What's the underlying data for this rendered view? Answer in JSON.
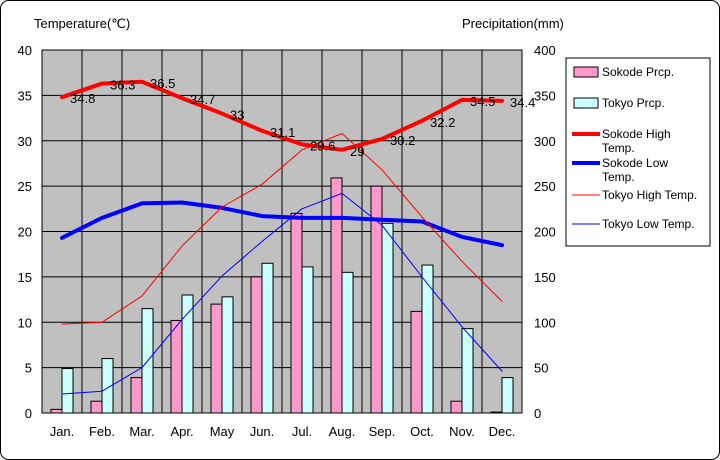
{
  "chart_data": {
    "type": "bar",
    "left_unit_label": "Temperature(℃)",
    "right_unit_label": "Precipitation(mm)",
    "categories": [
      "Jan.",
      "Feb.",
      "Mar.",
      "Apr.",
      "May",
      "Jun.",
      "Jul.",
      "Aug.",
      "Sep.",
      "Oct.",
      "Nov.",
      "Dec."
    ],
    "left_axis": {
      "min": 0,
      "max": 40,
      "ticks": [
        0,
        5,
        10,
        15,
        20,
        25,
        30,
        35,
        40
      ]
    },
    "right_axis": {
      "min": 0,
      "max": 400,
      "ticks": [
        0,
        50,
        100,
        150,
        200,
        250,
        300,
        350,
        400
      ]
    },
    "grid": true,
    "legend_position": "right",
    "series": [
      {
        "name": "Sokode Prcp.",
        "kind": "bar",
        "axis": "right",
        "color": "#ff99cc",
        "values": [
          4,
          13,
          39,
          102,
          120,
          150,
          220,
          259,
          250,
          112,
          13,
          1
        ]
      },
      {
        "name": "Tokyo Prcp.",
        "kind": "bar",
        "axis": "right",
        "color": "#ccffff",
        "values": [
          49,
          60,
          115,
          130,
          128,
          165,
          161,
          155,
          209,
          163,
          93,
          39
        ]
      },
      {
        "name": "Sokode High Temp.",
        "kind": "line",
        "axis": "left",
        "color": "#ff0000",
        "width": "thick",
        "values": [
          34.8,
          36.3,
          36.5,
          34.7,
          33,
          31.1,
          29.6,
          29,
          30.2,
          32.2,
          34.5,
          34.4
        ],
        "labels": [
          "34.8",
          "36.3",
          "36.5",
          "34.7",
          "33",
          "31.1",
          "29.6",
          "29",
          "30.2",
          "32.2",
          "34.5",
          "34.4"
        ]
      },
      {
        "name": "Sokode Low Temp.",
        "kind": "line",
        "axis": "left",
        "color": "#0000ff",
        "width": "thick",
        "values": [
          19.3,
          21.5,
          23.1,
          23.2,
          22.6,
          21.7,
          21.5,
          21.5,
          21.3,
          21.1,
          19.4,
          18.5
        ]
      },
      {
        "name": "Tokyo High Temp.",
        "kind": "line",
        "axis": "left",
        "color": "#ff0000",
        "width": "thin",
        "values": [
          9.8,
          10.0,
          12.9,
          18.4,
          22.7,
          25.2,
          29.0,
          30.8,
          26.8,
          21.6,
          16.7,
          12.3
        ]
      },
      {
        "name": "Tokyo Low Temp.",
        "kind": "line",
        "axis": "left",
        "color": "#0000ff",
        "width": "thin",
        "values": [
          2.1,
          2.4,
          5.0,
          10.3,
          15.1,
          18.9,
          22.5,
          24.2,
          20.7,
          15.0,
          9.5,
          4.6
        ]
      }
    ]
  }
}
